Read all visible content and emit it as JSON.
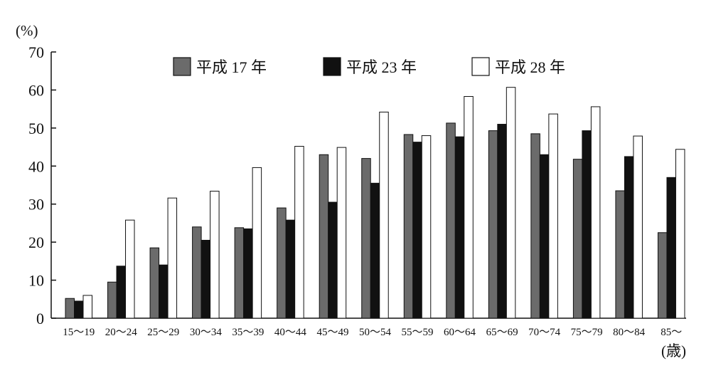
{
  "chart_data": {
    "type": "bar",
    "title": "",
    "ylabel": "(%)",
    "xlabel": "(歳)",
    "ylim": [
      0,
      70
    ],
    "yticks": [
      0,
      10,
      20,
      30,
      40,
      50,
      60,
      70
    ],
    "grid": false,
    "legend_position": "top",
    "categories": [
      "15～19",
      "20～24",
      "25～29",
      "30～34",
      "35～39",
      "40～44",
      "45～49",
      "50～54",
      "55～59",
      "60～64",
      "65～69",
      "70～74",
      "75～79",
      "80～84",
      "85～"
    ],
    "series": [
      {
        "name": "平成 17 年",
        "color": "#6b6b6b",
        "values": [
          5.2,
          9.5,
          18.5,
          24.0,
          23.8,
          29.0,
          43.0,
          42.0,
          48.3,
          51.3,
          49.3,
          48.5,
          41.8,
          33.5,
          22.5
        ]
      },
      {
        "name": "平成 23 年",
        "color": "#111111",
        "values": [
          4.5,
          13.7,
          14.0,
          20.5,
          23.5,
          25.8,
          30.5,
          35.5,
          46.3,
          47.7,
          51.0,
          43.0,
          49.3,
          42.5,
          37.0
        ]
      },
      {
        "name": "平成 28 年",
        "color": "#ffffff",
        "values": [
          6.0,
          25.8,
          31.6,
          33.4,
          39.6,
          45.2,
          44.9,
          54.2,
          48.0,
          58.3,
          60.7,
          53.7,
          55.6,
          47.9,
          44.4
        ]
      }
    ]
  }
}
